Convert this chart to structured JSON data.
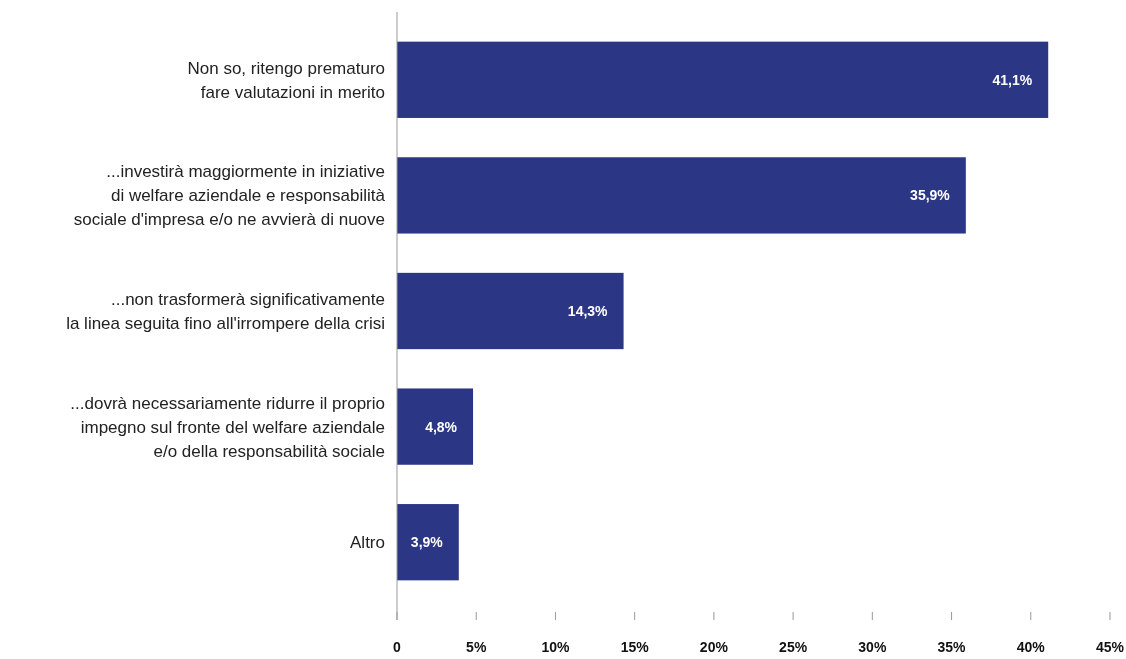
{
  "chart_data": {
    "type": "bar",
    "orientation": "horizontal",
    "categories": [
      "Non so, ritengo prematuro\nfare valutazioni in merito",
      "...investirà maggiormente in iniziative\ndi welfare aziendale e responsabilità\nsociale d'impresa e/o ne avvierà di nuove",
      "...non trasformerà significativamente\nla linea seguita fino all'irrompere della crisi",
      "...dovrà necessariamente ridurre il proprio\nimpegno sul fronte del welfare aziendale\ne/o della responsabilità sociale",
      "Altro"
    ],
    "values": [
      41.1,
      35.9,
      14.3,
      4.8,
      3.9
    ],
    "value_labels": [
      "41,1%",
      "35,9%",
      "14,3%",
      "4,8%",
      "3,9%"
    ],
    "color": "#2b3784",
    "xlim": [
      0,
      45
    ],
    "xticks": [
      {
        "value": 0,
        "label": "0"
      },
      {
        "value": 5,
        "label": "5%"
      },
      {
        "value": 10,
        "label": "10%"
      },
      {
        "value": 15,
        "label": "15%"
      },
      {
        "value": 20,
        "label": "20%"
      },
      {
        "value": 25,
        "label": "25%"
      },
      {
        "value": 30,
        "label": "30%"
      },
      {
        "value": 35,
        "label": "35%"
      },
      {
        "value": 40,
        "label": "40%"
      },
      {
        "value": 45,
        "label": "45%"
      }
    ],
    "grid": false
  }
}
